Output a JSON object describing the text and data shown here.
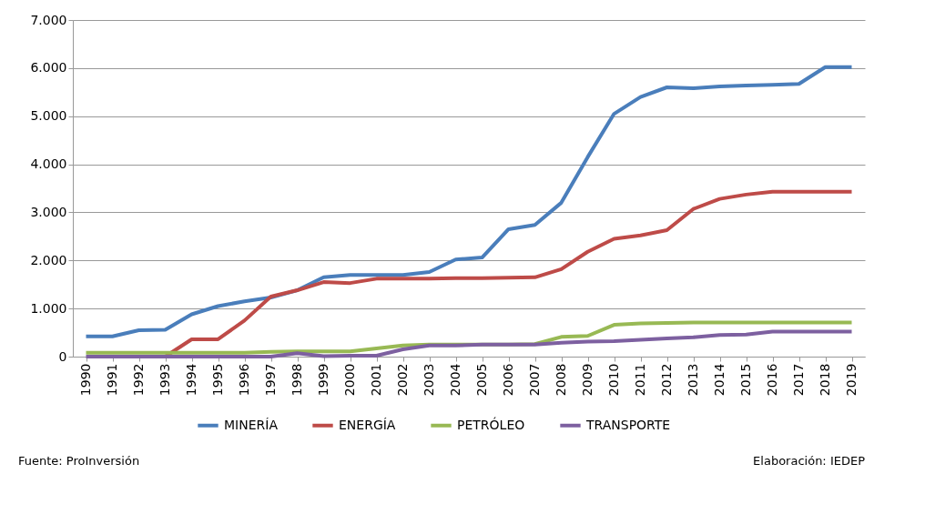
{
  "chart_data": {
    "type": "line",
    "categories": [
      "1990",
      "1991",
      "1992",
      "1993",
      "1994",
      "1995",
      "1996",
      "1997",
      "1998",
      "1999",
      "2000",
      "2001",
      "2002",
      "2003",
      "2004",
      "2005",
      "2006",
      "2007",
      "2008",
      "2009",
      "2010",
      "2011",
      "2012",
      "2013",
      "2014",
      "2015",
      "2016",
      "2017",
      "2018",
      "2019"
    ],
    "series": [
      {
        "name": "MINERÍA",
        "color": "#4a7ebb",
        "values": [
          420,
          420,
          550,
          560,
          880,
          1050,
          1150,
          1230,
          1380,
          1650,
          1700,
          1700,
          1700,
          1760,
          2020,
          2060,
          2650,
          2740,
          3200,
          4150,
          5050,
          5400,
          5600,
          5580,
          5620,
          5640,
          5650,
          5670,
          6020,
          6020
        ]
      },
      {
        "name": "ENERGÍA",
        "color": "#be4b48",
        "values": [
          null,
          null,
          null,
          0,
          360,
          360,
          750,
          1250,
          1380,
          1550,
          1530,
          1620,
          1620,
          1620,
          1630,
          1630,
          1640,
          1650,
          1820,
          2180,
          2450,
          2520,
          2630,
          3070,
          3280,
          3370,
          3430,
          3430,
          3430,
          3430
        ]
      },
      {
        "name": "PETRÓLEO",
        "color": "#98b954",
        "values": [
          80,
          80,
          80,
          80,
          80,
          80,
          80,
          100,
          110,
          110,
          110,
          170,
          230,
          250,
          250,
          250,
          250,
          260,
          410,
          430,
          660,
          690,
          700,
          710,
          710,
          710,
          710,
          710,
          710,
          710
        ]
      },
      {
        "name": "TRANSPORTE",
        "color": "#7d60a0",
        "values": [
          0,
          0,
          0,
          0,
          0,
          0,
          0,
          0,
          70,
          10,
          20,
          20,
          150,
          230,
          230,
          250,
          250,
          250,
          290,
          310,
          320,
          350,
          380,
          400,
          450,
          460,
          520,
          520,
          520,
          520
        ]
      }
    ],
    "ylim": [
      0,
      7000
    ],
    "yticks": [
      0,
      {
        "value": 1000,
        "label": "1.000"
      },
      {
        "value": 2000,
        "label": "2.000"
      },
      {
        "value": 3000,
        "label": "3.000"
      },
      {
        "value": 4000,
        "label": "4.000"
      },
      {
        "value": 5000,
        "label": "5.000"
      },
      {
        "value": 6000,
        "label": "6.000"
      },
      {
        "value": 7000,
        "label": "7.000"
      }
    ],
    "grid": "y",
    "legend": "bottom",
    "marker": "none",
    "line_style": "solid",
    "annotations": [
      "Fuente: ProInversión",
      "Elaboración: IEDEP"
    ]
  }
}
